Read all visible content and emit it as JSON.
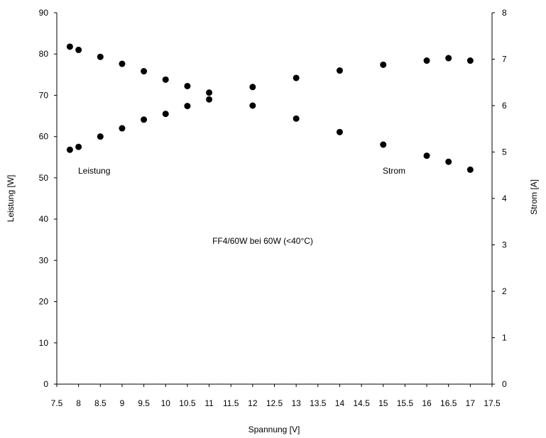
{
  "chart_data": {
    "type": "scatter",
    "title": "FF4/60W bei 60W (<40°C)",
    "xlabel": "Spannung [V]",
    "ylabel_left": "Leistung [W]",
    "ylabel_right": "Strom [A]",
    "xlim": [
      7.5,
      17.5
    ],
    "ylim_left": [
      0,
      90
    ],
    "ylim_right": [
      0,
      8
    ],
    "x_ticks": [
      "7.5",
      "8",
      "8.5",
      "9",
      "9.5",
      "10",
      "10.5",
      "11",
      "11.5",
      "12",
      "12.5",
      "13",
      "13.5",
      "14",
      "14.5",
      "15",
      "15.5",
      "16",
      "16.5",
      "17",
      "17.5"
    ],
    "y_left_ticks": [
      "0",
      "10",
      "20",
      "30",
      "40",
      "50",
      "60",
      "70",
      "80",
      "90"
    ],
    "y_right_ticks": [
      "0",
      "1",
      "2",
      "3",
      "4",
      "5",
      "6",
      "7",
      "8"
    ],
    "grid": false,
    "series": [
      {
        "name": "Leistung",
        "axis": "left",
        "color": "#000000",
        "x": [
          7.8,
          8.0,
          8.5,
          9.0,
          9.5,
          10.0,
          10.5,
          11.0,
          12.0,
          13.0,
          14.0,
          15.0,
          16.0,
          16.5,
          17.0
        ],
        "y": [
          56.8,
          57.5,
          60.0,
          62.0,
          64.1,
          65.5,
          67.4,
          69.0,
          72.0,
          74.2,
          76.0,
          77.4,
          78.4,
          79.0,
          78.4
        ]
      },
      {
        "name": "Strom",
        "axis": "right",
        "color": "#000000",
        "x": [
          7.8,
          8.0,
          8.5,
          9.0,
          9.5,
          10.0,
          10.5,
          11.0,
          12.0,
          13.0,
          14.0,
          15.0,
          16.0,
          16.5,
          17.0
        ],
        "y": [
          7.27,
          7.2,
          7.05,
          6.9,
          6.74,
          6.56,
          6.42,
          6.28,
          6.0,
          5.72,
          5.43,
          5.16,
          4.92,
          4.79,
          4.62
        ]
      }
    ]
  }
}
